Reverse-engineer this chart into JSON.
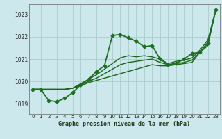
{
  "background_color": "#cce8ec",
  "grid_color": "#aacccc",
  "title": "Graphe pression niveau de la mer (hPa)",
  "xlim": [
    -0.5,
    23.5
  ],
  "ylim": [
    1018.55,
    1023.45
  ],
  "yticks": [
    1019,
    1020,
    1021,
    1022,
    1023
  ],
  "xticks": [
    0,
    1,
    2,
    3,
    4,
    5,
    6,
    7,
    8,
    9,
    10,
    11,
    12,
    13,
    14,
    15,
    16,
    17,
    18,
    19,
    20,
    21,
    22,
    23
  ],
  "series": [
    {
      "x": [
        0,
        1,
        2,
        3,
        4,
        5,
        6,
        7,
        8,
        9,
        10,
        11,
        12,
        13,
        14,
        15,
        16,
        17,
        18,
        19,
        20,
        21,
        22,
        23
      ],
      "y": [
        1019.65,
        1019.65,
        1019.65,
        1019.65,
        1019.65,
        1019.7,
        1019.8,
        1019.95,
        1020.05,
        1020.15,
        1020.25,
        1020.35,
        1020.45,
        1020.55,
        1020.65,
        1020.75,
        1020.7,
        1020.7,
        1020.75,
        1020.8,
        1020.85,
        1021.3,
        1021.6,
        1023.2
      ],
      "color": "#1a6618",
      "lw": 1.0,
      "marker": null
    },
    {
      "x": [
        0,
        1,
        2,
        3,
        4,
        5,
        6,
        7,
        8,
        9,
        10,
        11,
        12,
        13,
        14,
        15,
        16,
        17,
        18,
        19,
        20,
        21,
        22,
        23
      ],
      "y": [
        1019.65,
        1019.65,
        1019.65,
        1019.65,
        1019.65,
        1019.7,
        1019.85,
        1020.0,
        1020.15,
        1020.35,
        1020.55,
        1020.75,
        1020.85,
        1020.9,
        1020.95,
        1021.0,
        1020.85,
        1020.75,
        1020.8,
        1020.85,
        1020.95,
        1021.3,
        1021.75,
        1023.2
      ],
      "color": "#1a6618",
      "lw": 1.0,
      "marker": null
    },
    {
      "x": [
        0,
        1,
        2,
        3,
        4,
        5,
        6,
        7,
        8,
        9,
        10,
        11,
        12,
        13,
        14,
        15,
        16,
        17,
        18,
        19,
        20,
        21,
        22,
        23
      ],
      "y": [
        1019.65,
        1019.65,
        1019.65,
        1019.65,
        1019.65,
        1019.7,
        1019.9,
        1020.1,
        1020.3,
        1020.55,
        1020.8,
        1021.05,
        1021.15,
        1021.1,
        1021.15,
        1021.1,
        1021.0,
        1020.8,
        1020.9,
        1020.95,
        1021.05,
        1021.4,
        1021.85,
        1023.2
      ],
      "color": "#1a6618",
      "lw": 1.0,
      "marker": null
    },
    {
      "x": [
        0,
        1,
        2,
        3,
        4,
        5,
        6,
        7,
        8,
        9,
        10,
        11,
        12,
        13,
        14,
        15,
        16,
        17,
        18,
        19,
        20,
        21,
        22,
        23
      ],
      "y": [
        1019.65,
        1019.65,
        1019.15,
        1019.1,
        1019.25,
        1019.5,
        1019.85,
        1020.1,
        1020.45,
        1020.7,
        1022.05,
        1022.1,
        1021.95,
        1021.8,
        1021.55,
        1021.6,
        1021.0,
        1020.75,
        1020.8,
        1021.0,
        1021.25,
        1021.3,
        1021.7,
        1023.2
      ],
      "color": "#1a7020",
      "lw": 1.3,
      "marker": "D",
      "markersize": 2.5
    }
  ]
}
